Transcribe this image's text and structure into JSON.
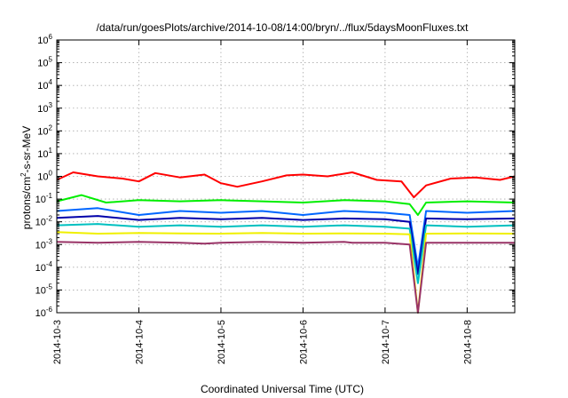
{
  "chart_data": {
    "type": "line",
    "title": "/data/run/goesPlots/archive/2014-10-08/14:00/bryn/../flux/5daysMoonFluxes.txt",
    "xlabel": "Coordinated Universal Time (UTC)",
    "ylabel_parts": [
      "protons/cm",
      "2",
      "-s-sr-MeV"
    ],
    "y_scale": "log",
    "ylim": [
      1e-06,
      1000000.0
    ],
    "xlim": [
      "2014-10-03",
      "2014-10-08 14:00"
    ],
    "grid": true,
    "legend": "none",
    "x_ticks": [
      "2014-10-3",
      "2014-10-4",
      "2014-10-5",
      "2014-10-6",
      "2014-10-7",
      "2014-10-8"
    ],
    "y_ticks": [
      {
        "base": "10",
        "exp": "-6"
      },
      {
        "base": "10",
        "exp": "-5"
      },
      {
        "base": "10",
        "exp": "-4"
      },
      {
        "base": "10",
        "exp": "-3"
      },
      {
        "base": "10",
        "exp": "-2"
      },
      {
        "base": "10",
        "exp": "-1"
      },
      {
        "base": "10",
        "exp": "0"
      },
      {
        "base": "10",
        "exp": "1"
      },
      {
        "base": "10",
        "exp": "2"
      },
      {
        "base": "10",
        "exp": "3"
      },
      {
        "base": "10",
        "exp": "4"
      },
      {
        "base": "10",
        "exp": "5"
      },
      {
        "base": "10",
        "exp": "6"
      }
    ],
    "series": [
      {
        "color": "#ff0000",
        "x": [
          0,
          0.2,
          0.5,
          0.8,
          1.0,
          1.2,
          1.5,
          1.8,
          2.0,
          2.2,
          2.5,
          2.8,
          3.0,
          3.3,
          3.6,
          3.9,
          4.2,
          4.35,
          4.5,
          4.8,
          5.1,
          5.4,
          5.58
        ],
        "y": [
          0.7,
          1.5,
          1.0,
          0.8,
          0.6,
          1.4,
          0.9,
          1.2,
          0.5,
          0.35,
          0.6,
          1.1,
          1.2,
          1.0,
          1.5,
          0.7,
          0.6,
          0.12,
          0.4,
          0.8,
          0.9,
          0.7,
          1.0
        ]
      },
      {
        "color": "#00ee00",
        "x": [
          0,
          0.3,
          0.6,
          1.0,
          1.5,
          2.0,
          2.5,
          3.0,
          3.5,
          4.0,
          4.3,
          4.4,
          4.5,
          5.0,
          5.58
        ],
        "y": [
          0.08,
          0.15,
          0.07,
          0.09,
          0.08,
          0.09,
          0.08,
          0.07,
          0.09,
          0.08,
          0.06,
          0.02,
          0.07,
          0.08,
          0.07
        ]
      },
      {
        "color": "#0066ff",
        "x": [
          0,
          0.5,
          1.0,
          1.5,
          2.0,
          2.5,
          3.0,
          3.5,
          4.0,
          4.3,
          4.4,
          4.5,
          5.0,
          5.58
        ],
        "y": [
          0.03,
          0.04,
          0.02,
          0.03,
          0.025,
          0.03,
          0.02,
          0.03,
          0.025,
          0.02,
          0.0001,
          0.03,
          0.025,
          0.03
        ]
      },
      {
        "color": "#0000aa",
        "x": [
          0,
          0.5,
          1.0,
          1.5,
          2.0,
          2.5,
          3.0,
          3.5,
          4.0,
          4.3,
          4.4,
          4.5,
          5.0,
          5.58
        ],
        "y": [
          0.015,
          0.018,
          0.012,
          0.015,
          0.013,
          0.015,
          0.012,
          0.014,
          0.013,
          0.01,
          5e-05,
          0.014,
          0.013,
          0.014
        ]
      },
      {
        "color": "#00c0c0",
        "x": [
          0,
          0.5,
          1.0,
          1.5,
          2.0,
          2.5,
          3.0,
          3.5,
          4.0,
          4.3,
          4.4,
          4.5,
          5.0,
          5.58
        ],
        "y": [
          0.007,
          0.008,
          0.006,
          0.007,
          0.006,
          0.007,
          0.006,
          0.007,
          0.006,
          0.005,
          2e-05,
          0.007,
          0.006,
          0.007
        ]
      },
      {
        "color": "#f0f000",
        "x": [
          0,
          0.5,
          1.0,
          1.5,
          2.0,
          2.5,
          3.0,
          3.5,
          4.0,
          4.3,
          4.4,
          4.5,
          5.0,
          5.58
        ],
        "y": [
          0.0035,
          0.003,
          0.0032,
          0.0031,
          0.003,
          0.0032,
          0.003,
          0.0031,
          0.003,
          0.0028,
          1e-06,
          0.003,
          0.0031,
          0.003
        ]
      },
      {
        "color": "#993366",
        "x": [
          0,
          0.5,
          1.0,
          1.5,
          1.8,
          2.0,
          2.5,
          3.0,
          3.5,
          3.6,
          4.0,
          4.3,
          4.4,
          4.5,
          5.0,
          5.58
        ],
        "y": [
          0.0013,
          0.0012,
          0.0013,
          0.0012,
          0.0011,
          0.0012,
          0.0013,
          0.0012,
          0.0013,
          0.0012,
          0.0012,
          0.001,
          5e-07,
          0.0012,
          0.0012,
          0.0012
        ]
      }
    ]
  }
}
